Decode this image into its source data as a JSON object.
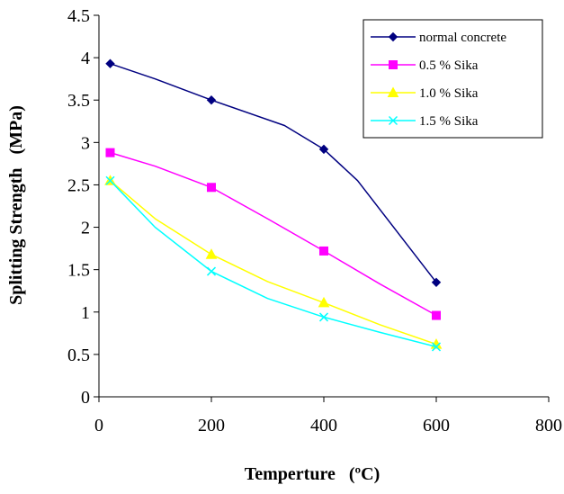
{
  "chart_data": {
    "type": "line",
    "title": "",
    "xlabel": "Temperture   (ºC)",
    "ylabel": "Splitting Strength   (MPa)",
    "xlim": [
      0,
      800
    ],
    "ylim": [
      0,
      4.5
    ],
    "x_ticks": [
      0,
      200,
      400,
      600,
      800
    ],
    "y_ticks": [
      0,
      0.5,
      1,
      1.5,
      2,
      2.5,
      3,
      3.5,
      4,
      4.5
    ],
    "x_tick_labels": [
      "0",
      "200",
      "400",
      "600",
      "800"
    ],
    "y_tick_labels": [
      "0",
      "0.5",
      "1",
      "1.5",
      "2",
      "2.5",
      "3",
      "3.5",
      "4",
      "4.5"
    ],
    "grid": false,
    "legend_position": "top-right",
    "series": [
      {
        "name": "normal concrete",
        "color": "#000080",
        "marker": "diamond",
        "points": [
          [
            20,
            3.93
          ],
          [
            200,
            3.5
          ],
          [
            400,
            2.92
          ],
          [
            600,
            1.35
          ]
        ],
        "curve": [
          [
            20,
            3.93
          ],
          [
            100,
            3.75
          ],
          [
            200,
            3.5
          ],
          [
            330,
            3.2
          ],
          [
            400,
            2.92
          ],
          [
            460,
            2.55
          ],
          [
            530,
            1.95
          ],
          [
            600,
            1.35
          ]
        ]
      },
      {
        "name": "0.5 % Sika",
        "color": "#ff00ff",
        "marker": "square",
        "points": [
          [
            20,
            2.88
          ],
          [
            200,
            2.47
          ],
          [
            400,
            1.72
          ],
          [
            600,
            0.96
          ]
        ],
        "curve": [
          [
            20,
            2.88
          ],
          [
            100,
            2.72
          ],
          [
            200,
            2.47
          ],
          [
            300,
            2.1
          ],
          [
            400,
            1.72
          ],
          [
            500,
            1.33
          ],
          [
            600,
            0.96
          ]
        ]
      },
      {
        "name": "1.0 % Sika",
        "color": "#ffff00",
        "marker": "triangle",
        "points": [
          [
            20,
            2.55
          ],
          [
            200,
            1.68
          ],
          [
            400,
            1.11
          ],
          [
            600,
            0.62
          ]
        ],
        "curve": [
          [
            20,
            2.55
          ],
          [
            100,
            2.1
          ],
          [
            200,
            1.68
          ],
          [
            300,
            1.36
          ],
          [
            400,
            1.11
          ],
          [
            500,
            0.85
          ],
          [
            600,
            0.62
          ]
        ]
      },
      {
        "name": "1.5 % Sika",
        "color": "#00ffff",
        "marker": "x",
        "points": [
          [
            20,
            2.55
          ],
          [
            200,
            1.48
          ],
          [
            400,
            0.94
          ],
          [
            600,
            0.59
          ]
        ],
        "curve": [
          [
            20,
            2.55
          ],
          [
            100,
            2.0
          ],
          [
            200,
            1.48
          ],
          [
            300,
            1.16
          ],
          [
            400,
            0.94
          ],
          [
            500,
            0.76
          ],
          [
            600,
            0.59
          ]
        ]
      }
    ]
  }
}
